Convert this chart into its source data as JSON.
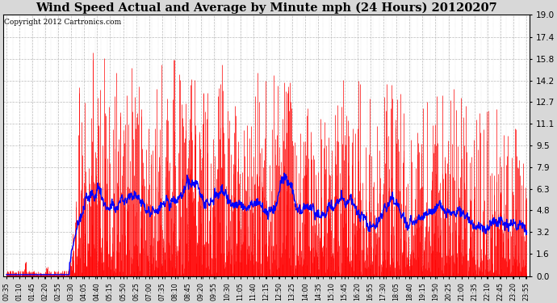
{
  "title": "Wind Speed Actual and Average by Minute mph (24 Hours) 20120207",
  "copyright_text": "Copyright 2012 Cartronics.com",
  "ylim": [
    0.0,
    19.0
  ],
  "yticks": [
    0.0,
    1.6,
    3.2,
    4.8,
    6.3,
    7.9,
    9.5,
    11.1,
    12.7,
    14.2,
    15.8,
    17.4,
    19.0
  ],
  "actual_color": "#FF0000",
  "average_color": "#0000FF",
  "background_color": "#D8D8D8",
  "plot_bg_color": "#FFFFFF",
  "grid_color": "#AAAAAA",
  "title_fontsize": 10.5,
  "copyright_fontsize": 6.5,
  "num_minutes": 1440,
  "x_tick_labels": [
    "00:35",
    "01:10",
    "01:45",
    "02:20",
    "02:55",
    "03:30",
    "04:05",
    "04:40",
    "05:15",
    "05:50",
    "06:25",
    "07:00",
    "07:35",
    "08:10",
    "08:45",
    "09:20",
    "09:55",
    "10:30",
    "11:05",
    "11:40",
    "12:15",
    "12:50",
    "13:25",
    "14:00",
    "14:35",
    "15:10",
    "15:45",
    "16:20",
    "16:55",
    "17:30",
    "18:05",
    "18:40",
    "19:15",
    "19:50",
    "20:25",
    "21:00",
    "21:35",
    "22:10",
    "22:45",
    "23:20",
    "23:55"
  ]
}
